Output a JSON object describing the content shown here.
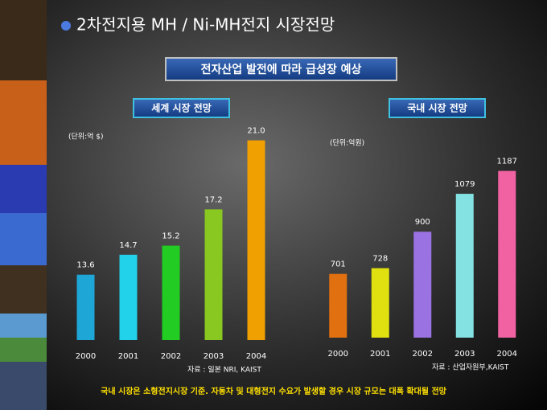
{
  "slide": {
    "title": "2차전지용 MH / Ni-MH전지 시장전망",
    "banner": "전자산업 발전에 따라 급성장 예상",
    "footnote": "국내 시장은 소형전지시장  기준.  자동차 및 대형전지 수요가 발생할 경우 시장 규모는 대폭 확대될 전망"
  },
  "chart_data": [
    {
      "type": "bar",
      "title": "세계 시장 전망",
      "unit": "(단위:억 $)",
      "source": "자료 : 일본 NRI, KAIST",
      "categories": [
        "2000",
        "2001",
        "2002",
        "2003",
        "2004"
      ],
      "values": [
        13.6,
        14.7,
        15.2,
        17.2,
        21.0
      ],
      "value_labels": [
        "13.6",
        "14.7",
        "15.2",
        "17.2",
        "21.0"
      ],
      "colors": [
        "#1ea6d6",
        "#22d2ea",
        "#22cc22",
        "#88c820",
        "#f0a000"
      ],
      "ylim": [
        10,
        22
      ]
    },
    {
      "type": "bar",
      "title": "국내 시장 전망",
      "unit": "(단위:억원)",
      "source": "자료 : 산업자원부,KAIST",
      "categories": [
        "2000",
        "2001",
        "2002",
        "2003",
        "2004"
      ],
      "values": [
        701,
        728,
        900,
        1079,
        1187
      ],
      "colors": [
        "#e07010",
        "#e0e010",
        "#9a72e2",
        "#84e2e2",
        "#f062a2"
      ],
      "ylim": [
        400,
        1250
      ]
    }
  ]
}
